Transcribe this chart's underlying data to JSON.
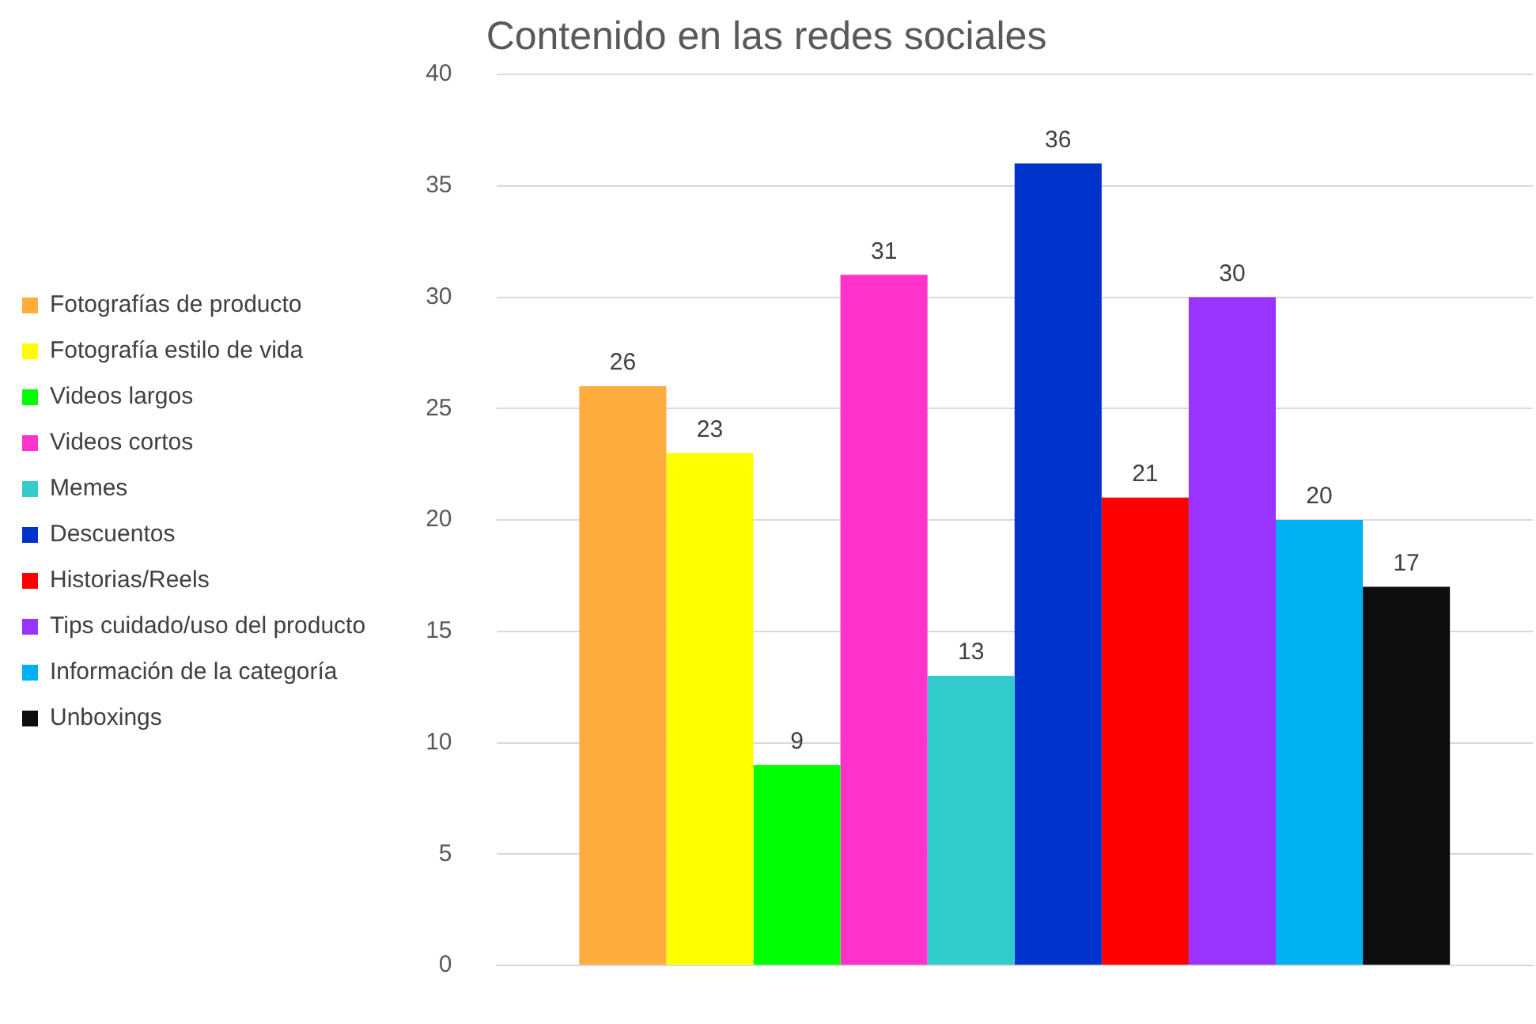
{
  "chart_data": {
    "type": "bar",
    "title": "Contenido en las redes sociales",
    "categories": [
      null
    ],
    "series": [
      {
        "name": "Fotografías de producto",
        "color": "#ffad3f",
        "values": [
          26
        ]
      },
      {
        "name": "Fotografía estilo de vida",
        "color": "#ffff00",
        "values": [
          23
        ]
      },
      {
        "name": "Videos largos",
        "color": "#00ff00",
        "values": [
          9
        ]
      },
      {
        "name": "Videos cortos",
        "color": "#ff33cc",
        "values": [
          31
        ]
      },
      {
        "name": "Memes",
        "color": "#33cccc",
        "values": [
          13
        ]
      },
      {
        "name": "Descuentos",
        "color": "#0033cc",
        "values": [
          36
        ]
      },
      {
        "name": "Historias/Reels",
        "color": "#ff0000",
        "values": [
          21
        ]
      },
      {
        "name": "Tips cuidado/uso del producto",
        "color": "#9933ff",
        "values": [
          30
        ]
      },
      {
        "name": "Información de la categoría",
        "color": "#00b0f0",
        "values": [
          20
        ]
      },
      {
        "name": "Unboxings",
        "color": "#0d0d0d",
        "values": [
          17
        ]
      }
    ],
    "ylim": [
      0,
      40
    ],
    "yticks": [
      0,
      5,
      10,
      15,
      20,
      25,
      30,
      35,
      40
    ],
    "grid": "y",
    "legend": "left",
    "data_labels": true
  }
}
